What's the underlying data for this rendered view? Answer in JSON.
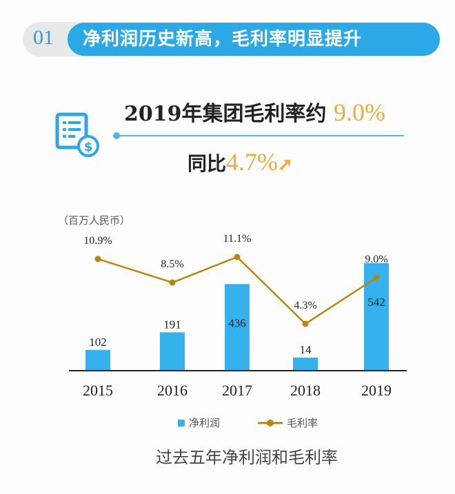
{
  "header": {
    "number": "01",
    "title": "净利润历史新高，毛利率明显提升"
  },
  "highlight": {
    "line1_prefix": "2019年集团毛利率约",
    "line1_value": "9.0%",
    "line2_prefix": "同比",
    "line2_value": "4.7%",
    "icon": "invoice-dollar-icon",
    "arrow_icon": "arrow-up-icon"
  },
  "colors": {
    "accent": "#2ba8e6",
    "bar": "#35b1ee",
    "line": "#b8860b",
    "highlight": "#f2a93a"
  },
  "chart_data": {
    "type": "bar+line",
    "unit_label": "（百万人民币）",
    "categories": [
      "2015",
      "2016",
      "2017",
      "2018",
      "2019"
    ],
    "series": [
      {
        "name": "净利润",
        "type": "bar",
        "values": [
          102,
          191,
          436,
          14,
          542
        ],
        "labels": [
          "102",
          "191",
          "436",
          "14",
          "542"
        ]
      },
      {
        "name": "毛利率",
        "type": "line",
        "values": [
          10.9,
          8.5,
          11.1,
          4.3,
          9.0
        ],
        "labels": [
          "10.9%",
          "8.5%",
          "11.1%",
          "4.3%",
          "9.0%"
        ]
      }
    ],
    "title": "过去五年净利润和毛利率",
    "legend": "bottom",
    "grid": false
  }
}
